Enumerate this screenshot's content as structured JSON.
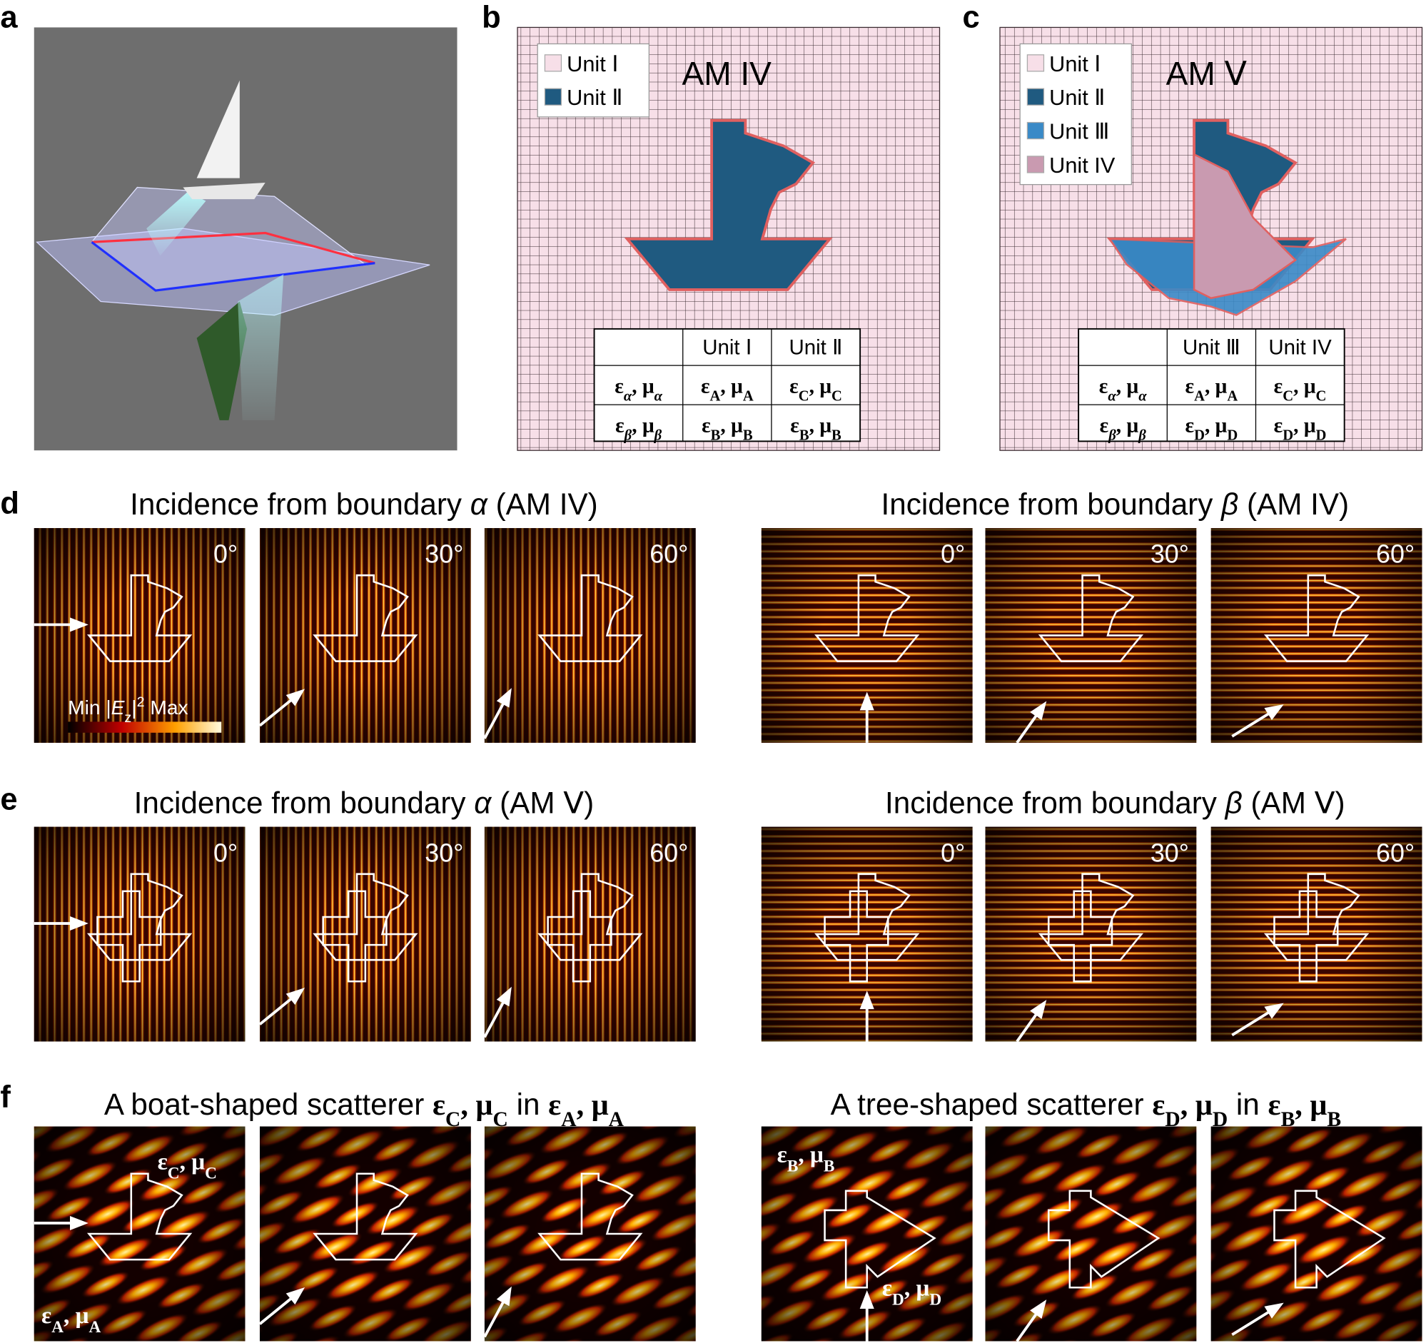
{
  "labels": [
    "a",
    "b",
    "c",
    "d",
    "e",
    "f"
  ],
  "b": {
    "title": "AM IV",
    "legend": [
      {
        "label": "Unit Ⅰ",
        "color": "#f7dfe8"
      },
      {
        "label": "Unit Ⅱ",
        "color": "#1f5a80"
      }
    ],
    "table": {
      "header": [
        "Unit Ⅰ",
        "Unit Ⅱ"
      ],
      "rows": [
        [
          [
            {
              "t": "ε",
              "s": "b"
            },
            {
              "t": "α",
              "s": "b it sub"
            },
            {
              "t": ", μ",
              "s": "b"
            },
            {
              "t": "α",
              "s": "b it sub"
            }
          ],
          [
            {
              "t": "ε",
              "s": "b"
            },
            {
              "t": "A",
              "s": "b sub"
            },
            {
              "t": ", μ",
              "s": "b"
            },
            {
              "t": "A",
              "s": "b sub"
            }
          ],
          [
            {
              "t": "ε",
              "s": "b"
            },
            {
              "t": "C",
              "s": "b sub"
            },
            {
              "t": ", μ",
              "s": "b"
            },
            {
              "t": "C",
              "s": "b sub"
            }
          ]
        ],
        [
          [
            {
              "t": "ε",
              "s": "b"
            },
            {
              "t": "β",
              "s": "b it sub"
            },
            {
              "t": ", μ",
              "s": "b"
            },
            {
              "t": "β",
              "s": "b it sub"
            }
          ],
          [
            {
              "t": "ε",
              "s": "b"
            },
            {
              "t": "B",
              "s": "b sub"
            },
            {
              "t": ", μ",
              "s": "b"
            },
            {
              "t": "B",
              "s": "b sub"
            }
          ],
          [
            {
              "t": "ε",
              "s": "b"
            },
            {
              "t": "B",
              "s": "b sub"
            },
            {
              "t": ", μ",
              "s": "b"
            },
            {
              "t": "B",
              "s": "b sub"
            }
          ]
        ]
      ]
    }
  },
  "c": {
    "title": "AM Ⅴ",
    "legend": [
      {
        "label": "Unit Ⅰ",
        "color": "#f7dfe8"
      },
      {
        "label": "Unit Ⅱ",
        "color": "#1f5a80"
      },
      {
        "label": "Unit Ⅲ",
        "color": "#3a8ac7"
      },
      {
        "label": "Unit IV",
        "color": "#c99ab0"
      }
    ],
    "table": {
      "header": [
        "Unit Ⅲ",
        "Unit IV"
      ],
      "rows": [
        [
          [
            {
              "t": "ε",
              "s": "b"
            },
            {
              "t": "α",
              "s": "b it sub"
            },
            {
              "t": ", μ",
              "s": "b"
            },
            {
              "t": "α",
              "s": "b it sub"
            }
          ],
          [
            {
              "t": "ε",
              "s": "b"
            },
            {
              "t": "A",
              "s": "b sub"
            },
            {
              "t": ", μ",
              "s": "b"
            },
            {
              "t": "A",
              "s": "b sub"
            }
          ],
          [
            {
              "t": "ε",
              "s": "b"
            },
            {
              "t": "C",
              "s": "b sub"
            },
            {
              "t": ", μ",
              "s": "b"
            },
            {
              "t": "C",
              "s": "b sub"
            }
          ]
        ],
        [
          [
            {
              "t": "ε",
              "s": "b"
            },
            {
              "t": "β",
              "s": "b it sub"
            },
            {
              "t": ", μ",
              "s": "b"
            },
            {
              "t": "β",
              "s": "b it sub"
            }
          ],
          [
            {
              "t": "ε",
              "s": "b"
            },
            {
              "t": "D",
              "s": "b sub"
            },
            {
              "t": ", μ",
              "s": "b"
            },
            {
              "t": "D",
              "s": "b sub"
            }
          ],
          [
            {
              "t": "ε",
              "s": "b"
            },
            {
              "t": "D",
              "s": "b sub"
            },
            {
              "t": ", μ",
              "s": "b"
            },
            {
              "t": "D",
              "s": "b sub"
            }
          ]
        ]
      ]
    }
  },
  "d": {
    "left": {
      "title": [
        {
          "t": "Incidence from boundary "
        },
        {
          "t": "α",
          "s": "it"
        },
        {
          "t": " (AM IV)"
        }
      ],
      "angles": [
        "0°",
        "30°",
        "60°"
      ]
    },
    "right": {
      "title": [
        {
          "t": "Incidence from boundary "
        },
        {
          "t": "β",
          "s": "it"
        },
        {
          "t": " (AM IV)"
        }
      ],
      "angles": [
        "0°",
        "30°",
        "60°"
      ]
    },
    "colorbar": [
      {
        "t": "Min |"
      },
      {
        "t": "E",
        "s": "it"
      },
      {
        "t": "z",
        "s": "sub"
      },
      {
        "t": "|"
      },
      {
        "t": "2",
        "s": "sup"
      },
      {
        "t": " Max"
      }
    ]
  },
  "e": {
    "left": {
      "title": [
        {
          "t": "Incidence from boundary "
        },
        {
          "t": "α",
          "s": "it"
        },
        {
          "t": " (AM Ⅴ)"
        }
      ],
      "angles": [
        "0°",
        "30°",
        "60°"
      ]
    },
    "right": {
      "title": [
        {
          "t": "Incidence from boundary "
        },
        {
          "t": "β",
          "s": "it"
        },
        {
          "t": " (AM Ⅴ)"
        }
      ],
      "angles": [
        "0°",
        "30°",
        "60°"
      ]
    }
  },
  "f": {
    "left": {
      "title": [
        {
          "t": "A boat-shaped scatterer "
        },
        {
          "t": "ε",
          "s": "b"
        },
        {
          "t": "C",
          "s": "b sub"
        },
        {
          "t": ", μ",
          "s": "b"
        },
        {
          "t": "C",
          "s": "b sub"
        },
        {
          "t": " in "
        },
        {
          "t": "ε",
          "s": "b"
        },
        {
          "t": "A",
          "s": "b sub"
        },
        {
          "t": ", μ",
          "s": "b"
        },
        {
          "t": "A",
          "s": "b sub"
        }
      ],
      "annotations": [
        [
          {
            "t": "ε",
            "s": "b"
          },
          {
            "t": "C",
            "s": "b sub"
          },
          {
            "t": ", μ",
            "s": "b"
          },
          {
            "t": "C",
            "s": "b sub"
          }
        ],
        [
          {
            "t": "ε",
            "s": "b"
          },
          {
            "t": "A",
            "s": "b sub"
          },
          {
            "t": ", μ",
            "s": "b"
          },
          {
            "t": "A",
            "s": "b sub"
          }
        ]
      ]
    },
    "right": {
      "title": [
        {
          "t": "A tree-shaped scatterer "
        },
        {
          "t": "ε",
          "s": "b"
        },
        {
          "t": "D",
          "s": "b sub"
        },
        {
          "t": ", μ",
          "s": "b"
        },
        {
          "t": "D",
          "s": "b sub"
        },
        {
          "t": " in "
        },
        {
          "t": "ε",
          "s": "b"
        },
        {
          "t": "B",
          "s": "b sub"
        },
        {
          "t": ", μ",
          "s": "b"
        },
        {
          "t": "B",
          "s": "b sub"
        }
      ],
      "annotations": [
        [
          {
            "t": "ε",
            "s": "b"
          },
          {
            "t": "B",
            "s": "b sub"
          },
          {
            "t": ", μ",
            "s": "b"
          },
          {
            "t": "B",
            "s": "b sub"
          }
        ],
        [
          {
            "t": "ε",
            "s": "b"
          },
          {
            "t": "D",
            "s": "b sub"
          },
          {
            "t": ", μ",
            "s": "b"
          },
          {
            "t": "D",
            "s": "b sub"
          }
        ]
      ]
    }
  }
}
